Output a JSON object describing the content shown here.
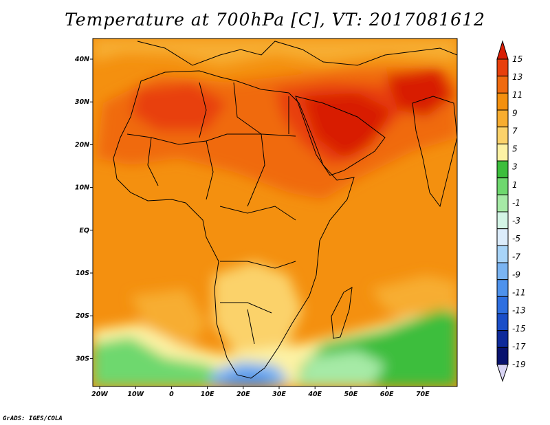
{
  "title": "Temperature at 700hPa [C], VT: 2017081612",
  "credit": "GrADS: IGES/COLA",
  "map": {
    "lon_labels": [
      "20W",
      "10W",
      "0",
      "10E",
      "20E",
      "30E",
      "40E",
      "50E",
      "60E",
      "70E"
    ],
    "lat_labels": [
      "40N",
      "30N",
      "20N",
      "10N",
      "EQ",
      "10S",
      "20S",
      "30S"
    ],
    "lon_range": [
      -22,
      80
    ],
    "lat_range": [
      -36,
      46
    ],
    "field": "temperature_700hPa",
    "units": "C"
  },
  "colorbar": {
    "labels": [
      "15",
      "13",
      "11",
      "9",
      "7",
      "5",
      "3",
      "1",
      "-1",
      "-3",
      "-5",
      "-7",
      "-9",
      "-11",
      "-13",
      "-15",
      "-17",
      "-19"
    ],
    "colors": [
      "#d81e05",
      "#e8400c",
      "#f06a0f",
      "#f4900f",
      "#f7ad30",
      "#fbd26a",
      "#fdf2a4",
      "#3cbe3c",
      "#6ed86e",
      "#a6eaa6",
      "#d4f5e6",
      "#dcecfb",
      "#a8d4f8",
      "#7ab4f2",
      "#4e92ec",
      "#2e6fe0",
      "#1a4ec8",
      "#0e2a9a",
      "#08126e"
    ],
    "low_arrow_color": "#d8d4f4"
  }
}
